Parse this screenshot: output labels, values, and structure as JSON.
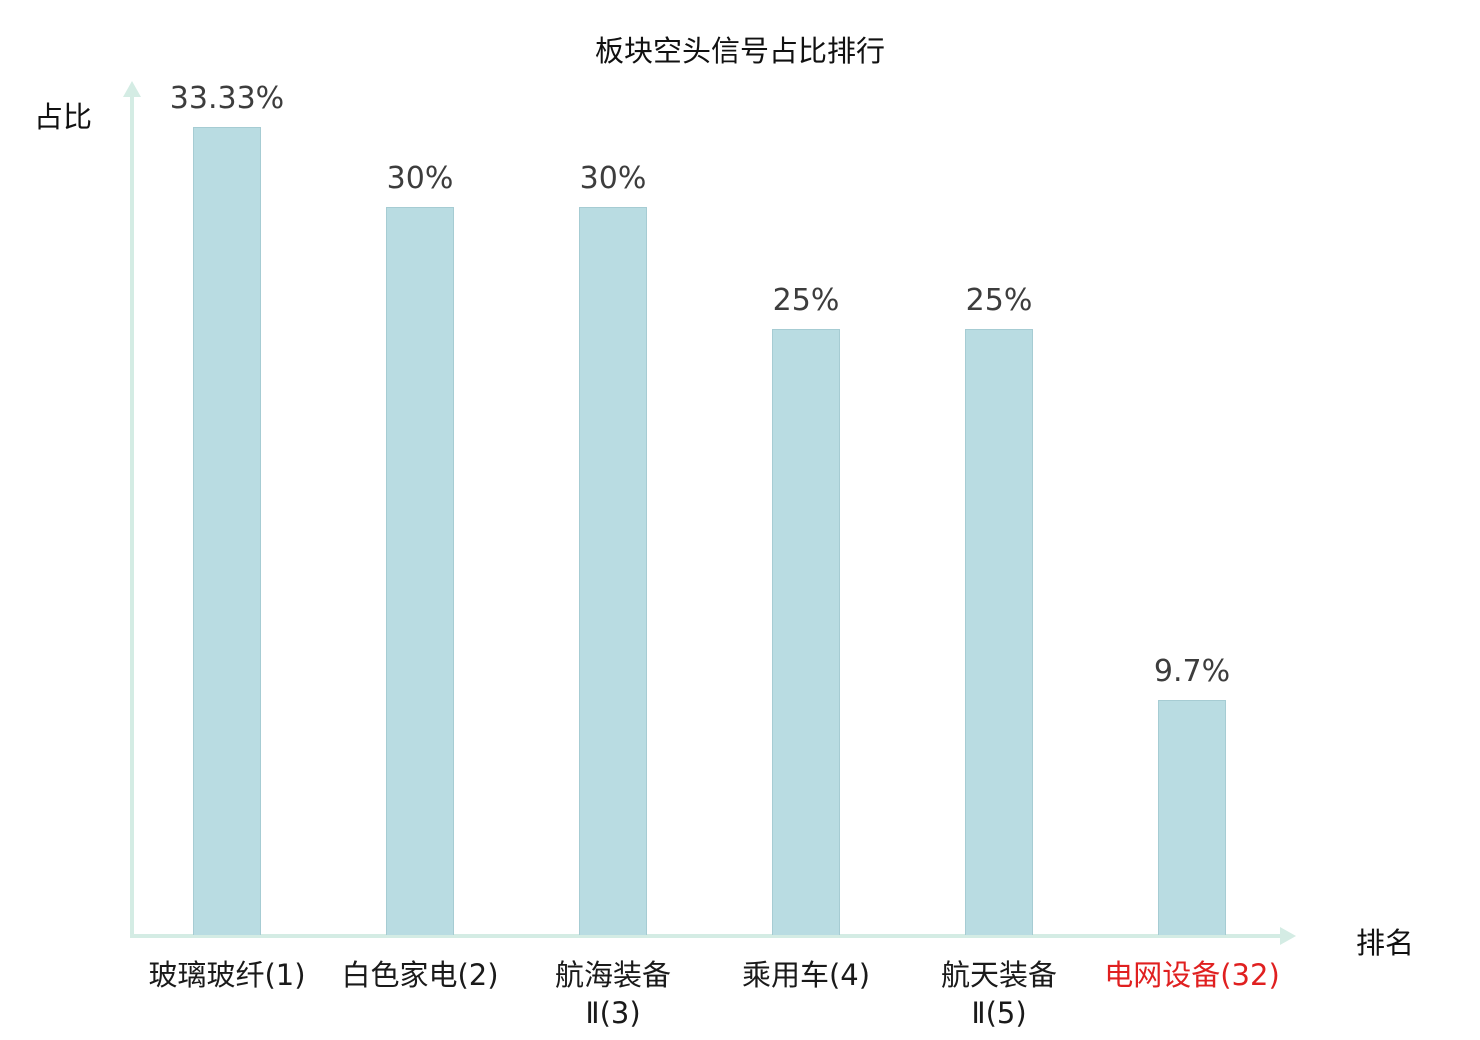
{
  "chart_data": {
    "type": "bar",
    "title": "板块空头信号占比排行",
    "ylabel": "占比",
    "xlabel": "排名",
    "ylim": [
      0,
      35
    ],
    "grid": false,
    "legend": "none",
    "categories": [
      "玻璃玻纤(1)",
      "白色家电(2)",
      "航海装备\nⅡ(3)",
      "乘用车(4)",
      "航天装备\nⅡ(5)",
      "电网设备(32)"
    ],
    "values": [
      33.33,
      30,
      30,
      25,
      25,
      9.7
    ],
    "value_labels": [
      "33.33%",
      "30%",
      "30%",
      "25%",
      "25%",
      "9.7%"
    ],
    "highlight_index": 5
  },
  "colors": {
    "bar": "#b9dce2",
    "bar-border": "#a6ccd3",
    "axis": "#d4ece4",
    "value-label": "#3d3d3d",
    "category-label": "#1a1a1a",
    "highlight": "#e02020",
    "title": "#111111"
  }
}
